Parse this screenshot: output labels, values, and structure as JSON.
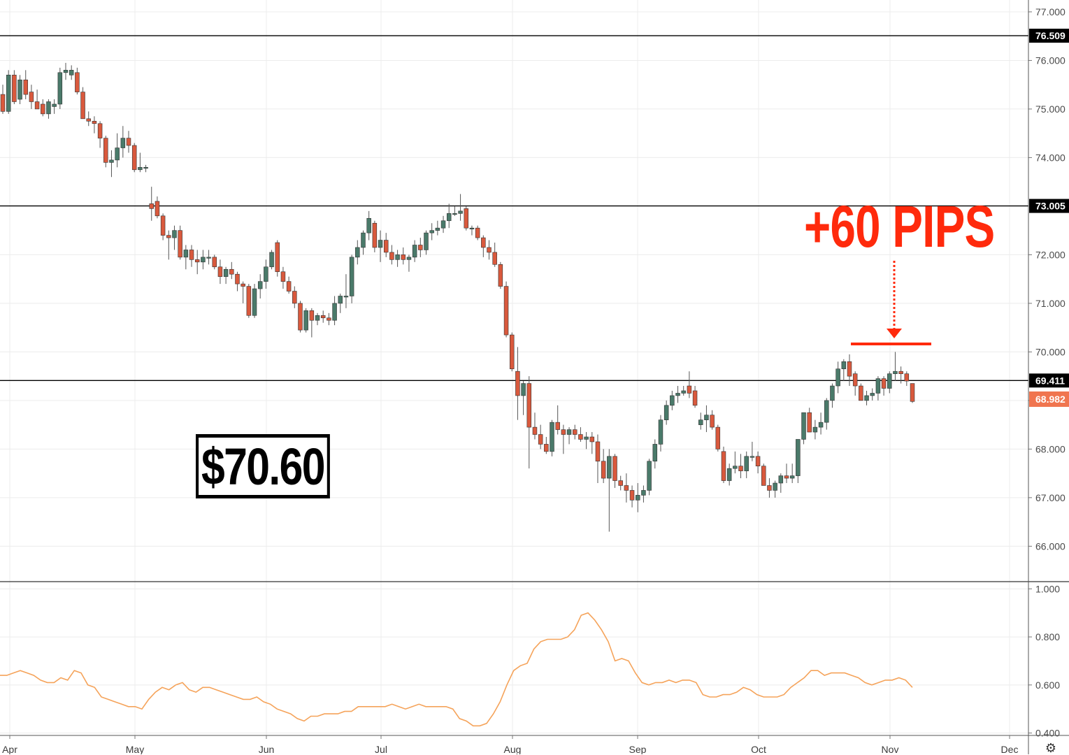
{
  "chart_data": {
    "type": "candlestick",
    "title": "",
    "x_labels": [
      "Apr",
      "May",
      "Jun",
      "Jul",
      "Aug",
      "Sep",
      "Oct",
      "Nov",
      "Dec"
    ],
    "price_axis": {
      "ylim": [
        65.3,
        77.1
      ],
      "ticks": [
        "66.000",
        "67.000",
        "68.000",
        "69.000",
        "70.000",
        "71.000",
        "72.000",
        "74.000",
        "75.000",
        "76.000",
        "77.000"
      ],
      "tick_values": [
        66,
        67,
        68,
        69,
        70,
        71,
        72,
        74,
        75,
        76,
        77
      ]
    },
    "horizontal_levels": [
      {
        "value": 76.509,
        "label": "76.509"
      },
      {
        "value": 73.005,
        "label": "73.005"
      },
      {
        "value": 69.411,
        "label": "69.411"
      }
    ],
    "last_price": {
      "value": 68.982,
      "label": "68.982",
      "color": "#f0754f"
    },
    "ohlc": [
      [
        75.3,
        75.5,
        74.9,
        74.95
      ],
      [
        74.95,
        75.8,
        74.9,
        75.7
      ],
      [
        75.7,
        75.8,
        75.1,
        75.15
      ],
      [
        75.2,
        75.7,
        75.1,
        75.6
      ],
      [
        75.6,
        75.8,
        75.2,
        75.3
      ],
      [
        75.35,
        75.5,
        75.0,
        75.15
      ],
      [
        75.15,
        75.4,
        75.0,
        75.0
      ],
      [
        75.1,
        75.2,
        74.85,
        74.9
      ],
      [
        74.9,
        75.2,
        74.8,
        75.15
      ],
      [
        75.05,
        75.2,
        74.9,
        75.1
      ],
      [
        75.1,
        75.85,
        75.0,
        75.75
      ],
      [
        75.75,
        75.95,
        75.6,
        75.8
      ],
      [
        75.7,
        75.9,
        75.6,
        75.8
      ],
      [
        75.75,
        75.85,
        75.3,
        75.35
      ],
      [
        75.35,
        75.45,
        74.8,
        74.8
      ],
      [
        74.8,
        74.95,
        74.65,
        74.75
      ],
      [
        74.75,
        74.85,
        74.5,
        74.7
      ],
      [
        74.7,
        74.75,
        74.2,
        74.4
      ],
      [
        74.4,
        74.45,
        73.8,
        73.9
      ],
      [
        73.9,
        74.15,
        73.6,
        73.95
      ],
      [
        73.95,
        74.5,
        73.8,
        74.2
      ],
      [
        74.2,
        74.65,
        74.0,
        74.4
      ],
      [
        74.4,
        74.55,
        74.1,
        74.25
      ],
      [
        74.25,
        74.3,
        73.7,
        73.75
      ],
      [
        73.75,
        74.1,
        73.7,
        73.8
      ],
      [
        73.8,
        73.85,
        73.7,
        73.8
      ],
      [
        73.05,
        73.4,
        72.7,
        72.95
      ],
      [
        73.1,
        73.2,
        72.75,
        72.8
      ],
      [
        72.8,
        72.85,
        72.3,
        72.4
      ],
      [
        72.4,
        72.5,
        71.9,
        72.35
      ],
      [
        72.35,
        72.6,
        72.1,
        72.5
      ],
      [
        72.5,
        72.6,
        71.9,
        71.95
      ],
      [
        71.95,
        72.2,
        71.7,
        72.1
      ],
      [
        72.1,
        72.2,
        71.75,
        71.9
      ],
      [
        71.9,
        72.1,
        71.6,
        71.85
      ],
      [
        71.85,
        72.1,
        71.7,
        71.95
      ],
      [
        71.95,
        72.1,
        71.8,
        71.95
      ],
      [
        71.95,
        72.0,
        71.7,
        71.75
      ],
      [
        71.75,
        71.9,
        71.4,
        71.55
      ],
      [
        71.55,
        71.75,
        71.4,
        71.7
      ],
      [
        71.7,
        71.85,
        71.5,
        71.6
      ],
      [
        71.6,
        71.65,
        71.25,
        71.4
      ],
      [
        71.4,
        71.45,
        71.0,
        71.35
      ],
      [
        71.35,
        71.4,
        70.7,
        70.75
      ],
      [
        70.75,
        71.4,
        70.7,
        71.3
      ],
      [
        71.3,
        71.6,
        71.1,
        71.45
      ],
      [
        71.45,
        71.9,
        71.3,
        71.75
      ],
      [
        71.75,
        72.1,
        71.7,
        72.05
      ],
      [
        72.25,
        72.3,
        71.55,
        71.65
      ],
      [
        71.65,
        71.75,
        71.3,
        71.45
      ],
      [
        71.45,
        71.55,
        71.2,
        71.25
      ],
      [
        71.25,
        71.35,
        70.9,
        71.0
      ],
      [
        71.0,
        71.05,
        70.4,
        70.45
      ],
      [
        70.45,
        70.9,
        70.4,
        70.85
      ],
      [
        70.85,
        70.9,
        70.3,
        70.65
      ],
      [
        70.65,
        70.8,
        70.55,
        70.75
      ],
      [
        70.75,
        70.85,
        70.6,
        70.7
      ],
      [
        70.7,
        70.8,
        70.55,
        70.65
      ],
      [
        70.65,
        71.15,
        70.55,
        71.0
      ],
      [
        71.0,
        71.2,
        70.8,
        71.15
      ],
      [
        71.15,
        71.6,
        70.9,
        71.15
      ],
      [
        71.15,
        72.0,
        71.0,
        71.95
      ],
      [
        71.95,
        72.3,
        71.8,
        72.15
      ],
      [
        72.15,
        72.5,
        72.0,
        72.45
      ],
      [
        72.45,
        72.9,
        72.3,
        72.75
      ],
      [
        72.65,
        72.7,
        72.05,
        72.15
      ],
      [
        72.15,
        72.5,
        71.85,
        72.3
      ],
      [
        72.3,
        72.45,
        71.95,
        72.05
      ],
      [
        72.05,
        72.2,
        71.8,
        71.9
      ],
      [
        71.9,
        72.1,
        71.75,
        72.0
      ],
      [
        72.0,
        72.15,
        71.8,
        71.9
      ],
      [
        71.9,
        72.0,
        71.65,
        71.95
      ],
      [
        71.95,
        72.3,
        71.85,
        72.2
      ],
      [
        72.2,
        72.35,
        71.95,
        72.1
      ],
      [
        72.1,
        72.5,
        72.0,
        72.45
      ],
      [
        72.45,
        72.65,
        72.3,
        72.5
      ],
      [
        72.5,
        72.7,
        72.4,
        72.55
      ],
      [
        72.55,
        72.8,
        72.45,
        72.7
      ],
      [
        72.7,
        73.05,
        72.55,
        72.85
      ],
      [
        72.85,
        73.0,
        72.8,
        72.85
      ],
      [
        72.85,
        73.25,
        72.7,
        72.9
      ],
      [
        72.95,
        73.0,
        72.5,
        72.55
      ],
      [
        72.55,
        72.6,
        72.4,
        72.55
      ],
      [
        72.55,
        72.6,
        72.3,
        72.35
      ],
      [
        72.35,
        72.4,
        71.95,
        72.15
      ],
      [
        72.15,
        72.3,
        71.9,
        72.05
      ],
      [
        72.05,
        72.25,
        71.75,
        71.8
      ],
      [
        71.8,
        71.85,
        71.3,
        71.35
      ],
      [
        71.35,
        71.45,
        70.3,
        70.35
      ],
      [
        70.35,
        70.4,
        69.6,
        69.65
      ],
      [
        69.6,
        70.1,
        68.6,
        69.1
      ],
      [
        69.1,
        69.4,
        68.7,
        69.35
      ],
      [
        69.35,
        69.5,
        67.6,
        68.45
      ],
      [
        68.45,
        68.75,
        68.2,
        68.3
      ],
      [
        68.3,
        68.5,
        68.0,
        68.1
      ],
      [
        68.1,
        68.25,
        67.9,
        67.95
      ],
      [
        67.95,
        68.6,
        67.85,
        68.55
      ],
      [
        68.55,
        68.9,
        68.3,
        68.4
      ],
      [
        68.4,
        68.5,
        67.9,
        68.3
      ],
      [
        68.3,
        68.45,
        68.1,
        68.4
      ],
      [
        68.4,
        68.5,
        68.2,
        68.3
      ],
      [
        68.3,
        68.45,
        68.15,
        68.2
      ],
      [
        68.2,
        68.35,
        68.0,
        68.25
      ],
      [
        68.25,
        68.35,
        67.9,
        68.15
      ],
      [
        68.15,
        68.3,
        67.3,
        67.75
      ],
      [
        67.75,
        68.0,
        67.3,
        67.4
      ],
      [
        67.4,
        68.0,
        66.3,
        67.85
      ],
      [
        67.85,
        67.9,
        67.2,
        67.35
      ],
      [
        67.35,
        67.45,
        67.15,
        67.25
      ],
      [
        67.25,
        67.5,
        66.9,
        67.15
      ],
      [
        67.15,
        67.25,
        66.8,
        66.95
      ],
      [
        66.95,
        67.3,
        66.7,
        67.05
      ],
      [
        67.05,
        67.25,
        66.9,
        67.15
      ],
      [
        67.15,
        67.8,
        67.05,
        67.75
      ],
      [
        67.75,
        68.2,
        67.6,
        68.1
      ],
      [
        68.1,
        68.7,
        67.95,
        68.6
      ],
      [
        68.6,
        69.0,
        68.5,
        68.9
      ],
      [
        68.9,
        69.2,
        68.8,
        69.1
      ],
      [
        69.1,
        69.3,
        68.95,
        69.15
      ],
      [
        69.15,
        69.3,
        69.1,
        69.2
      ],
      [
        69.3,
        69.6,
        69.05,
        69.15
      ],
      [
        69.2,
        69.3,
        68.85,
        68.9
      ],
      [
        68.5,
        68.75,
        68.4,
        68.6
      ],
      [
        68.6,
        68.9,
        68.35,
        68.7
      ],
      [
        68.7,
        68.8,
        68.4,
        68.45
      ],
      [
        68.45,
        68.5,
        67.95,
        68.0
      ],
      [
        67.95,
        68.05,
        67.3,
        67.35
      ],
      [
        67.35,
        67.7,
        67.25,
        67.6
      ],
      [
        67.6,
        67.95,
        67.5,
        67.65
      ],
      [
        67.65,
        67.9,
        67.4,
        67.55
      ],
      [
        67.55,
        67.95,
        67.4,
        67.85
      ],
      [
        67.85,
        68.15,
        67.75,
        67.85
      ],
      [
        67.85,
        67.95,
        67.5,
        67.65
      ],
      [
        67.65,
        67.7,
        67.3,
        67.25
      ],
      [
        67.25,
        67.4,
        67.0,
        67.15
      ],
      [
        67.15,
        67.35,
        67.0,
        67.3
      ],
      [
        67.3,
        67.5,
        67.1,
        67.45
      ],
      [
        67.45,
        67.7,
        67.3,
        67.4
      ],
      [
        67.4,
        67.7,
        67.3,
        67.45
      ],
      [
        67.45,
        68.2,
        67.3,
        68.2
      ],
      [
        68.2,
        68.75,
        68.1,
        68.75
      ],
      [
        68.75,
        68.85,
        68.35,
        68.35
      ],
      [
        68.35,
        68.6,
        68.2,
        68.45
      ],
      [
        68.45,
        68.75,
        68.3,
        68.55
      ],
      [
        68.55,
        69.05,
        68.4,
        69.0
      ],
      [
        69.0,
        69.35,
        68.85,
        69.3
      ],
      [
        69.3,
        69.8,
        69.15,
        69.65
      ],
      [
        69.65,
        69.85,
        69.4,
        69.8
      ],
      [
        69.8,
        69.95,
        69.3,
        69.5
      ],
      [
        69.55,
        69.6,
        69.1,
        69.3
      ],
      [
        69.3,
        69.35,
        69.0,
        69.0
      ],
      [
        69.0,
        69.2,
        68.9,
        69.1
      ],
      [
        69.1,
        69.25,
        69.0,
        69.15
      ],
      [
        69.15,
        69.5,
        69.0,
        69.45
      ],
      [
        69.45,
        69.5,
        69.1,
        69.25
      ],
      [
        69.25,
        69.6,
        69.15,
        69.55
      ],
      [
        69.55,
        70.0,
        69.4,
        69.6
      ],
      [
        69.6,
        69.7,
        69.35,
        69.55
      ],
      [
        69.55,
        69.6,
        69.3,
        69.4
      ],
      [
        69.35,
        69.35,
        68.95,
        68.98
      ]
    ],
    "annotations": {
      "price_box": "$70.60",
      "pips_label": "+60 PIPS"
    },
    "indicator": {
      "type": "line",
      "color": "#f5a35a",
      "ylim": [
        0.39,
        1.03
      ],
      "ticks": [
        "1.000",
        "0.800",
        "0.600",
        "0.400"
      ],
      "tick_values": [
        1.0,
        0.8,
        0.6,
        0.4
      ],
      "values": [
        0.64,
        0.64,
        0.65,
        0.66,
        0.65,
        0.64,
        0.62,
        0.61,
        0.61,
        0.63,
        0.62,
        0.66,
        0.65,
        0.6,
        0.59,
        0.55,
        0.54,
        0.53,
        0.52,
        0.51,
        0.51,
        0.5,
        0.54,
        0.57,
        0.59,
        0.58,
        0.6,
        0.61,
        0.58,
        0.57,
        0.59,
        0.59,
        0.58,
        0.57,
        0.56,
        0.55,
        0.54,
        0.54,
        0.55,
        0.53,
        0.52,
        0.5,
        0.49,
        0.48,
        0.46,
        0.45,
        0.47,
        0.47,
        0.48,
        0.48,
        0.48,
        0.49,
        0.49,
        0.51,
        0.51,
        0.51,
        0.51,
        0.51,
        0.52,
        0.51,
        0.5,
        0.51,
        0.52,
        0.51,
        0.51,
        0.51,
        0.51,
        0.5,
        0.46,
        0.45,
        0.43,
        0.43,
        0.44,
        0.48,
        0.53,
        0.6,
        0.66,
        0.68,
        0.69,
        0.75,
        0.78,
        0.79,
        0.79,
        0.79,
        0.8,
        0.83,
        0.89,
        0.9,
        0.87,
        0.83,
        0.78,
        0.7,
        0.71,
        0.7,
        0.65,
        0.61,
        0.6,
        0.61,
        0.61,
        0.62,
        0.61,
        0.62,
        0.62,
        0.61,
        0.56,
        0.55,
        0.55,
        0.56,
        0.56,
        0.57,
        0.59,
        0.58,
        0.56,
        0.55,
        0.55,
        0.55,
        0.56,
        0.59,
        0.61,
        0.63,
        0.66,
        0.66,
        0.64,
        0.65,
        0.65,
        0.65,
        0.64,
        0.63,
        0.61,
        0.6,
        0.61,
        0.62,
        0.62,
        0.63,
        0.62,
        0.59
      ]
    },
    "colors": {
      "up": "#4a7a6a",
      "down": "#d9593d",
      "level_line": "#000000",
      "grid": "#ececec",
      "annotation": "#ff2a0c"
    }
  },
  "icons": {
    "settings": "gear-icon"
  }
}
